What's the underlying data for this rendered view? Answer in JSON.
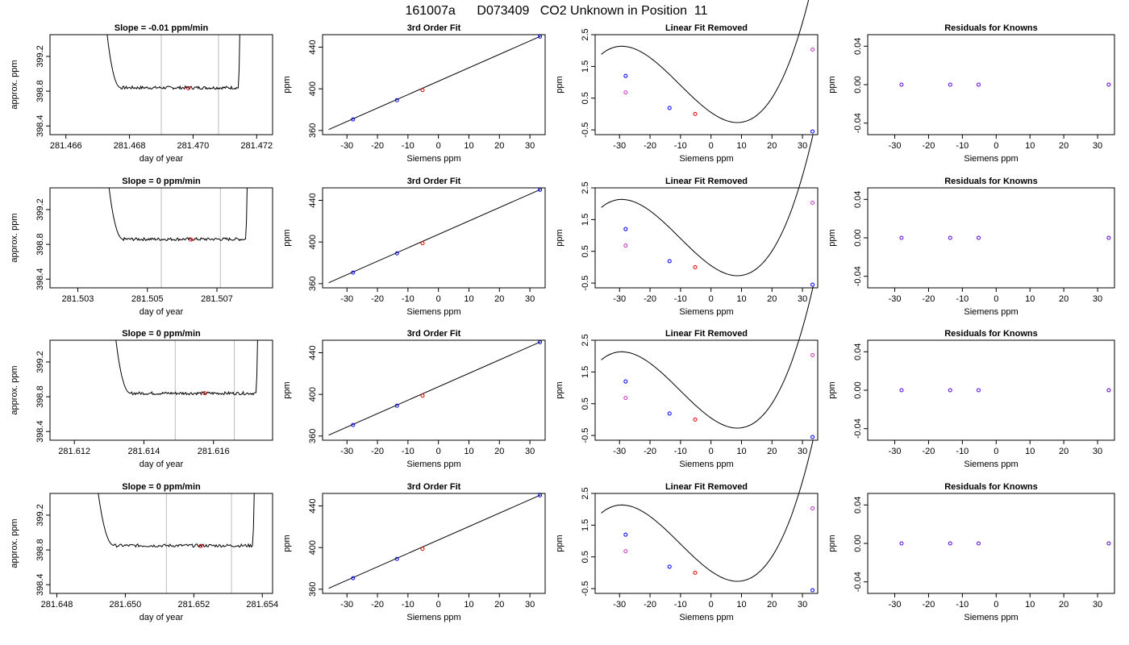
{
  "figure": {
    "title": "161007a      D073409   CO2 Unknown in Position  11"
  },
  "panel_titles": {
    "fit": "3rd Order Fit",
    "linear_removed": "Linear Fit Removed",
    "residuals": "Residuals for Knowns"
  },
  "chart_data": [
    {
      "type": "line",
      "title": "Slope =  -0.01  ppm/min",
      "xlabel": "day of year",
      "ylabel": "approx. ppm",
      "xlim": [
        281.4655,
        281.4725
      ],
      "ylim": [
        398.3,
        399.45
      ],
      "xticks": [
        "281.466",
        "281.468",
        "281.470",
        "281.472"
      ],
      "xtick_values": [
        281.466,
        281.468,
        281.47,
        281.472
      ],
      "yticks": [
        "398.4",
        "398.8",
        "399.2"
      ],
      "ytick_values": [
        398.4,
        398.8,
        399.2
      ],
      "vlines": [
        281.469,
        281.4708
      ],
      "trace_start": 281.4672,
      "trace_end": 281.4715,
      "plateau": 398.84,
      "marker": {
        "x": 281.46985,
        "y": 398.835
      }
    },
    {
      "type": "line",
      "title": "Slope =  0  ppm/min",
      "xlabel": "day of year",
      "ylabel": "approx. ppm",
      "xlim": [
        281.5022,
        281.5086
      ],
      "ylim": [
        398.3,
        399.45
      ],
      "xticks": [
        "281.503",
        "281.505",
        "281.507"
      ],
      "xtick_values": [
        281.503,
        281.505,
        281.507
      ],
      "yticks": [
        "398.4",
        "398.8",
        "399.2"
      ],
      "ytick_values": [
        398.4,
        398.8,
        399.2
      ],
      "vlines": [
        281.5054,
        281.5071
      ],
      "trace_start": 281.5038,
      "trace_end": 281.5079,
      "plateau": 398.86,
      "marker": {
        "x": 281.50625,
        "y": 398.855
      }
    },
    {
      "type": "line",
      "title": "Slope =  0  ppm/min",
      "xlabel": "day of year",
      "ylabel": "approx. ppm",
      "xlim": [
        281.6113,
        281.6177
      ],
      "ylim": [
        398.3,
        399.45
      ],
      "xticks": [
        "281.612",
        "281.614",
        "281.616"
      ],
      "xtick_values": [
        281.612,
        281.614,
        281.616
      ],
      "yticks": [
        "398.4",
        "398.8",
        "399.2"
      ],
      "ytick_values": [
        398.4,
        398.8,
        399.2
      ],
      "vlines": [
        281.6149,
        281.6166
      ],
      "trace_start": 281.6131,
      "trace_end": 281.6173,
      "plateau": 398.84,
      "marker": {
        "x": 281.61575,
        "y": 398.84
      }
    },
    {
      "type": "line",
      "title": "Slope =  0  ppm/min",
      "xlabel": "day of year",
      "ylabel": "approx. ppm",
      "xlim": [
        281.6478,
        281.6543
      ],
      "ylim": [
        398.3,
        399.45
      ],
      "xticks": [
        "281.648",
        "281.650",
        "281.652",
        "281.654"
      ],
      "xtick_values": [
        281.648,
        281.65,
        281.652,
        281.654
      ],
      "yticks": [
        "398.4",
        "398.8",
        "399.2"
      ],
      "ytick_values": [
        398.4,
        398.8,
        399.2
      ],
      "vlines": [
        281.6512,
        281.6531
      ],
      "trace_start": 281.6491,
      "trace_end": 281.6538,
      "plateau": 398.85,
      "marker": {
        "x": 281.6522,
        "y": 398.845
      }
    }
  ],
  "fit_chart": {
    "type": "line",
    "xlabel": "Siemens ppm",
    "ylabel": "ppm",
    "xlim": [
      -38,
      35
    ],
    "ylim": [
      356,
      452
    ],
    "xticks": [
      "-30",
      "-20",
      "-10",
      "0",
      "10",
      "20",
      "30"
    ],
    "xtick_values": [
      -30,
      -20,
      -10,
      0,
      10,
      20,
      30
    ],
    "yticks": [
      "360",
      "400",
      "440"
    ],
    "ytick_values": [
      360,
      400,
      440
    ],
    "line": [
      [
        -36,
        360.9
      ],
      [
        33.5,
        450.5
      ]
    ],
    "knowns": [
      {
        "x": -28,
        "y": 370.6
      },
      {
        "x": -13.6,
        "y": 389.1
      },
      {
        "x": 33.3,
        "y": 450.2
      }
    ],
    "unknown": {
      "x": -5.2,
      "y": 398.8
    }
  },
  "linear_removed_chart": {
    "type": "scatter",
    "xlabel": "Siemens ppm",
    "ylabel": "ppm",
    "xlim": [
      -38,
      35
    ],
    "ylim": [
      -0.65,
      2.5
    ],
    "xticks": [
      "-30",
      "-20",
      "-10",
      "0",
      "10",
      "20",
      "30"
    ],
    "xtick_values": [
      -30,
      -20,
      -10,
      0,
      10,
      20,
      30
    ],
    "yticks": [
      "-0.5",
      "0.5",
      "1.5",
      "2.5"
    ],
    "ytick_values": [
      -0.5,
      0.5,
      1.5,
      2.5
    ],
    "curve_coeffs": [
      0.05,
      -0.067,
      0.00273,
      8.83e-05
    ],
    "curve_range": [
      -36,
      33.5
    ],
    "knowns": [
      {
        "x": -28,
        "y": 1.2
      },
      {
        "x": -13.6,
        "y": 0.19
      },
      {
        "x": 33.3,
        "y": -0.55
      }
    ],
    "unknown": {
      "x": -5.2,
      "y": 0.0
    },
    "magenta_points": [
      {
        "x": -28,
        "y": 0.68
      },
      {
        "x": 33.3,
        "y": 2.03
      }
    ]
  },
  "residuals_chart": {
    "type": "scatter",
    "xlabel": "Siemens ppm",
    "ylabel": "ppm",
    "xlim": [
      -38,
      35
    ],
    "ylim": [
      -0.052,
      0.052
    ],
    "xticks": [
      "-30",
      "-20",
      "-10",
      "0",
      "10",
      "20",
      "30"
    ],
    "xtick_values": [
      -30,
      -20,
      -10,
      0,
      10,
      20,
      30
    ],
    "yticks": [
      "-0.04",
      "0.00",
      "0.04"
    ],
    "ytick_values": [
      -0.04,
      0.0,
      0.04
    ],
    "points": [
      {
        "x": -28,
        "y": 0.0
      },
      {
        "x": -13.6,
        "y": 0.0
      },
      {
        "x": -5.2,
        "y": 0.0
      },
      {
        "x": 33.3,
        "y": 0.0
      }
    ]
  }
}
